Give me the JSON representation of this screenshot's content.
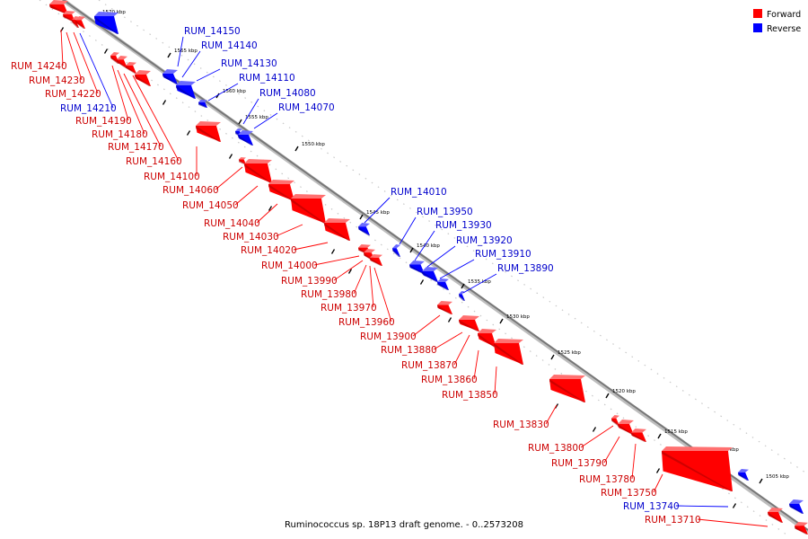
{
  "legend": {
    "items": [
      {
        "label": "Forward",
        "color": "#ff0000"
      },
      {
        "label": "Reverse",
        "color": "#0000ff"
      }
    ]
  },
  "caption": "Ruminococcus sp. 18P13 draft genome. - 0..2573208",
  "colors": {
    "forward": "#ff0000",
    "reverse": "#0000ff",
    "axis": "#777777",
    "forward_label": "#cc0000",
    "reverse_label": "#0000cc"
  },
  "kbp_ticks": [
    "1570 kbp",
    "1565 kbp",
    "1560 kbp",
    "1555 kbp",
    "1550 kbp",
    "1545 kbp",
    "1540 kbp",
    "1535 kbp",
    "1530 kbp",
    "1525 kbp",
    "1520 kbp",
    "1515 kbp",
    "1510 kbp",
    "1505 kbp"
  ],
  "genes": [
    {
      "label": "RUM_14240",
      "strand": "forward"
    },
    {
      "label": "RUM_14230",
      "strand": "forward"
    },
    {
      "label": "RUM_14220",
      "strand": "forward"
    },
    {
      "label": "RUM_14210",
      "strand": "reverse"
    },
    {
      "label": "RUM_14190",
      "strand": "forward"
    },
    {
      "label": "RUM_14180",
      "strand": "forward"
    },
    {
      "label": "RUM_14170",
      "strand": "forward"
    },
    {
      "label": "RUM_14160",
      "strand": "forward"
    },
    {
      "label": "RUM_14150",
      "strand": "reverse"
    },
    {
      "label": "RUM_14140",
      "strand": "reverse"
    },
    {
      "label": "RUM_14130",
      "strand": "reverse"
    },
    {
      "label": "RUM_14110",
      "strand": "reverse"
    },
    {
      "label": "RUM_14100",
      "strand": "forward"
    },
    {
      "label": "RUM_14080",
      "strand": "reverse"
    },
    {
      "label": "RUM_14070",
      "strand": "reverse"
    },
    {
      "label": "RUM_14060",
      "strand": "forward"
    },
    {
      "label": "RUM_14050",
      "strand": "forward"
    },
    {
      "label": "RUM_14040",
      "strand": "forward"
    },
    {
      "label": "RUM_14030",
      "strand": "forward"
    },
    {
      "label": "RUM_14020",
      "strand": "forward"
    },
    {
      "label": "RUM_14010",
      "strand": "reverse"
    },
    {
      "label": "RUM_14000",
      "strand": "forward"
    },
    {
      "label": "RUM_13990",
      "strand": "forward"
    },
    {
      "label": "RUM_13980",
      "strand": "forward"
    },
    {
      "label": "RUM_13970",
      "strand": "forward"
    },
    {
      "label": "RUM_13960",
      "strand": "forward"
    },
    {
      "label": "RUM_13950",
      "strand": "reverse"
    },
    {
      "label": "RUM_13930",
      "strand": "reverse"
    },
    {
      "label": "RUM_13920",
      "strand": "reverse"
    },
    {
      "label": "RUM_13910",
      "strand": "reverse"
    },
    {
      "label": "RUM_13900",
      "strand": "forward"
    },
    {
      "label": "RUM_13890",
      "strand": "reverse"
    },
    {
      "label": "RUM_13880",
      "strand": "forward"
    },
    {
      "label": "RUM_13870",
      "strand": "forward"
    },
    {
      "label": "RUM_13860",
      "strand": "forward"
    },
    {
      "label": "RUM_13850",
      "strand": "forward"
    },
    {
      "label": "RUM_13830",
      "strand": "forward"
    },
    {
      "label": "RUM_13800",
      "strand": "forward"
    },
    {
      "label": "RUM_13790",
      "strand": "forward"
    },
    {
      "label": "RUM_13780",
      "strand": "forward"
    },
    {
      "label": "RUM_13750",
      "strand": "forward"
    },
    {
      "label": "RUM_13740",
      "strand": "reverse"
    },
    {
      "label": "RUM_13710",
      "strand": "forward"
    }
  ]
}
